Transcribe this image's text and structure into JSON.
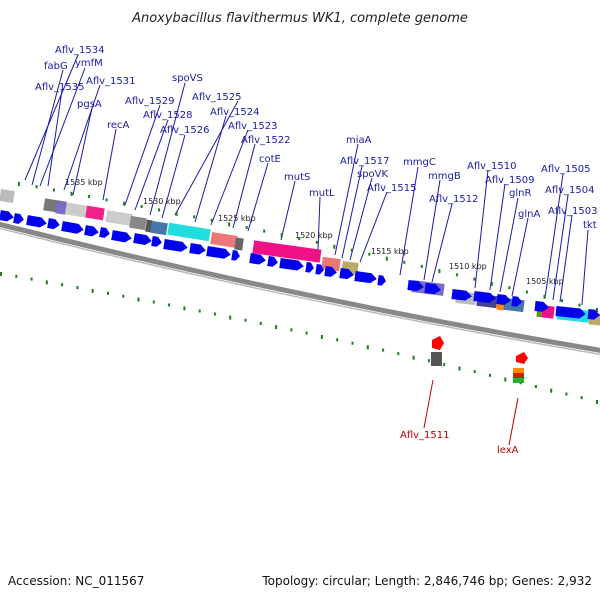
{
  "title": "Anoxybacillus flavithermus WK1, complete genome",
  "footer": {
    "accession": "Accession: NC_011567",
    "summary": "Topology: circular; Length: 2,846,746 bp; Genes: 2,932"
  },
  "ticks": [
    "1535 kbp",
    "1530 kbp",
    "1525 kbp",
    "1520 kbp",
    "1515 kbp",
    "1510 kbp",
    "1505 kbp"
  ],
  "genes_blue": [
    "Aflv_1534",
    "fabG",
    "ymfM",
    "Aflv_1535",
    "Aflv_1531",
    "pgsA",
    "spoVS",
    "recA",
    "Aflv_1529",
    "Aflv_1528",
    "Aflv_1525",
    "Aflv_1526",
    "Aflv_1524",
    "Aflv_1523",
    "Aflv_1522",
    "cotE",
    "mutS",
    "mutL",
    "miaA",
    "Aflv_1517",
    "spoVK",
    "Aflv_1515",
    "mmgC",
    "mmgB",
    "Aflv_1512",
    "Aflv_1510",
    "Aflv_1509",
    "glnR",
    "glnA",
    "Aflv_1505",
    "Aflv_1504",
    "Aflv_1503",
    "tkt"
  ],
  "genes_red": [
    "Aflv_1511",
    "lexA"
  ],
  "colors": {
    "backbone": "#888888",
    "arrow": "#0000ee",
    "gc_dots": "#1e7a1e",
    "label_blue": "#1a1aa8",
    "label_red": "#c00000"
  }
}
